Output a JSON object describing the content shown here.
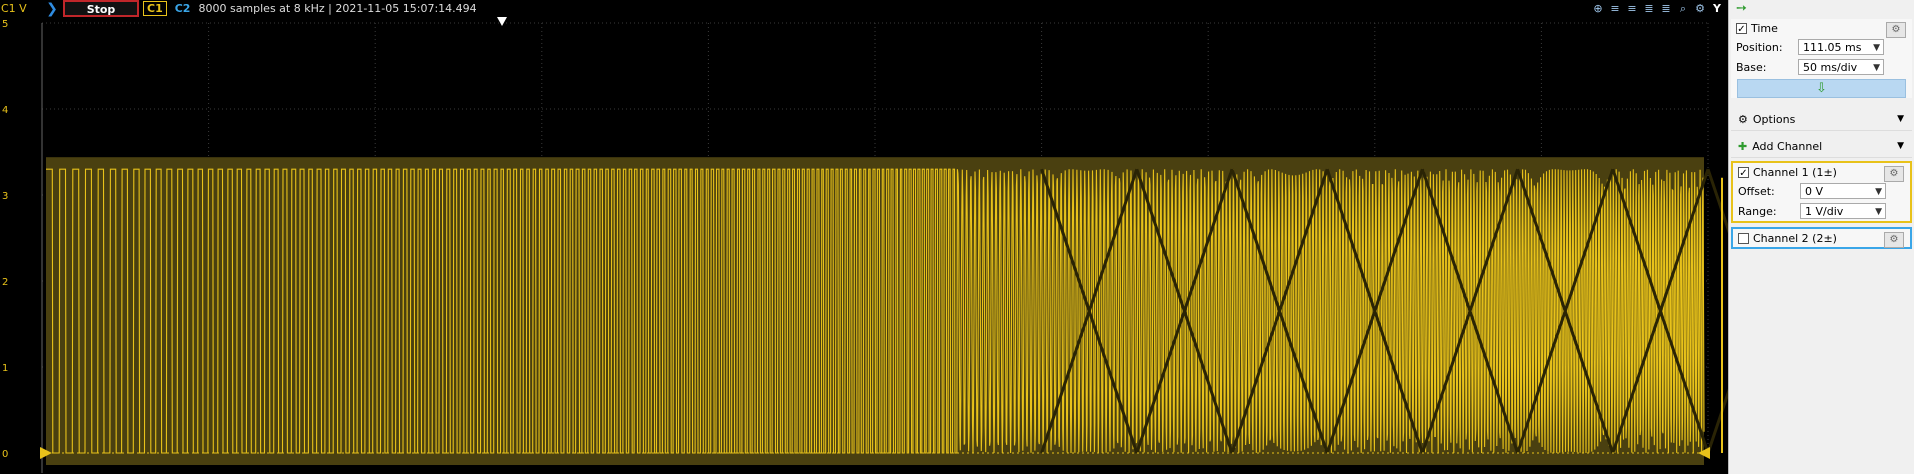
{
  "topbar": {
    "channel_unit": "C1 V",
    "stop_label": "Stop",
    "c1_label": "C1",
    "c2_label": "C2",
    "status_text": "8000 samples at 8 kHz | 2021-11-05 15:07:14.494",
    "y_label": "Y"
  },
  "y_axis_ticks": [
    "5",
    "4",
    "3",
    "2",
    "1",
    "0"
  ],
  "chart_data": {
    "type": "line",
    "series": [
      {
        "color": "#e8c21a",
        "values_range": [
          0,
          3.3
        ]
      }
    ],
    "ylim": [
      0,
      5
    ],
    "xlabel": "",
    "ylabel": "C1 V",
    "samples": 8000,
    "sample_rate": "8 kHz",
    "grid": true,
    "x_divisions": 10,
    "y_divisions": 5
  },
  "sidebar": {
    "time": {
      "title": "Time",
      "position_label": "Position:",
      "position_value": "111.05 ms",
      "base_label": "Base:",
      "base_value": "50 ms/div"
    },
    "options_label": "Options",
    "add_channel_label": "Add Channel",
    "channel1": {
      "title": "Channel 1 (1±)",
      "offset_label": "Offset:",
      "offset_value": "0 V",
      "range_label": "Range:",
      "range_value": "1 V/div"
    },
    "channel2": {
      "title": "Channel 2 (2±)"
    }
  },
  "colors": {
    "trace": "#e8c21a",
    "stop_border": "#c0262a",
    "channel2": "#3aa6e8"
  }
}
